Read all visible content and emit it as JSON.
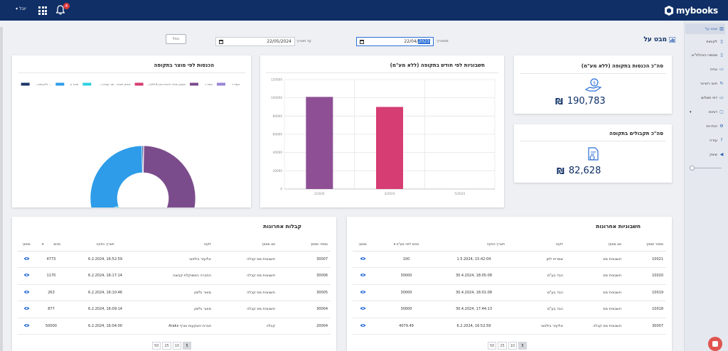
{
  "topbar": {
    "brand": "mybooks",
    "user_label": "יובל",
    "notifications_count": "4"
  },
  "sidebar": {
    "items": [
      {
        "label": "מבט על",
        "icon": "chart-icon"
      },
      {
        "label": "לקוחות",
        "icon": "document-icon"
      },
      {
        "label": "מסמכי הנהלח\"ש",
        "icon": "document-icon"
      },
      {
        "label": "גבייה",
        "icon": "money-icon"
      },
      {
        "label": "חיוב ריטיינר",
        "icon": "refresh-icon"
      },
      {
        "label": "דפי תשלום",
        "icon": "card-icon"
      },
      {
        "label": "דוחות",
        "icon": "report-icon"
      },
      {
        "label": "הגדרות",
        "icon": "gear-icon"
      },
      {
        "label": "עזרה",
        "icon": "help-icon"
      },
      {
        "label": "שיווק",
        "icon": "megaphone-icon"
      }
    ]
  },
  "header": {
    "title": "מבט על",
    "from_label": "מתאריך",
    "from_value_prefix": "22/04/",
    "from_value_selected": "2023",
    "to_label": "עד תאריך",
    "to_value": "22/05/2024",
    "filter_button": "החל"
  },
  "kpi_income": {
    "title": "סה\"כ הכנסות בתקופה (ללא מע\"מ)",
    "currency": "₪",
    "value": "190,783"
  },
  "kpi_receipts": {
    "title": "סה\"כ תקבולים בתקופה",
    "currency": "₪",
    "value": "82,628"
  },
  "bar_card": {
    "title": "חשבוניות לפי חודש בתקופה (ללא מע\"מ)"
  },
  "donut_card": {
    "title": "הכנסות לפי מוצר בתקופה"
  },
  "chart_data": [
    {
      "type": "bar",
      "title": "חשבוניות לפי חודש בתקופה (ללא מע\"מ)",
      "categories": [
        "2/2024",
        "4/2024",
        "5/2024"
      ],
      "values": [
        101000,
        90000,
        0
      ],
      "colors": [
        "#8e4f95",
        "#d63d72",
        "#cccccc"
      ],
      "ylim": [
        0,
        120000
      ],
      "yticks": [
        0,
        20000,
        40000,
        60000,
        80000,
        100000,
        120000
      ],
      "grid": true
    },
    {
      "type": "pie",
      "title": "הכנסות לפי מוצר בתקופה",
      "labels": [
        "מוצר ד",
        "מוצר ג",
        "...(2019) מענק חבלה לרבות מע",
        "...סינזק תוכנה - תור עבודה",
        "מוצר א",
        "...ללקוחות ..."
      ],
      "values": [
        0.3,
        55.5,
        0.2,
        14,
        29.7,
        0.3
      ],
      "colors": [
        "#9b86d6",
        "#7b4c8c",
        "#d63d72",
        "#2fd0e0",
        "#2e9ce8",
        "#1c3566"
      ],
      "legend": "top"
    }
  ],
  "invoices": {
    "title": "חשבוניות אחרונות",
    "columns": [
      "מספר מסמך",
      "סוג מסמך",
      "לקוח",
      "תאריך הפקה",
      "סכום לפני מע\"מ",
      "מסמך"
    ],
    "rows": [
      {
        "num": "10021",
        "type": "חשבונית מס",
        "client": "שמרית לתן",
        "date": "1.5.2024, 15:42:04",
        "amount": "100"
      },
      {
        "num": "10020",
        "type": "חשבונית מס",
        "client": "הבד בע\"מ",
        "date": "30.4.2024, 18:05:08",
        "amount": "30000"
      },
      {
        "num": "10019",
        "type": "חשבונית מס",
        "client": "הבד בע\"מ",
        "date": "30.4.2024, 18:01:08",
        "amount": "30000"
      },
      {
        "num": "10018",
        "type": "חשבונית מס",
        "client": "הבד בע\"מ",
        "date": "30.4.2024, 17:44:13",
        "amount": "30000"
      },
      {
        "num": "30007",
        "type": "חשבונית מס קבלה",
        "client": "אליעזר בילסוני",
        "date": "6.2.2024, 16:52:59",
        "amount": "4079.49"
      }
    ],
    "pages": [
      "5",
      "10",
      "25",
      "50"
    ],
    "active_page": "5"
  },
  "receipts": {
    "title": "קבלות אחרונות",
    "columns": [
      "מספר מסמך",
      "סוג מסמך",
      "לקוח",
      "תאריך הפקה",
      "סכום",
      "מסמך"
    ],
    "rows": [
      {
        "num": "30007",
        "type": "חשבונית מס קבלה",
        "client": "אליעזר בילסוני",
        "date": "6.2.2024, 16:52:59",
        "amount": "4773"
      },
      {
        "num": "30006",
        "type": "חשבונית מס קבלה",
        "client": "החברה המשוקלת קבוצה",
        "date": "6.2.2024, 16:17:14",
        "amount": "1170"
      },
      {
        "num": "30005",
        "type": "חשבונית מס קבלה",
        "client": "מאור גלזמן",
        "date": "6.2.2024, 16:10:46",
        "amount": "263"
      },
      {
        "num": "30004",
        "type": "חשבונית מס קבלה",
        "client": "מאור גלזמן",
        "date": "6.2.2024, 16:09:14",
        "amount": "877"
      },
      {
        "num": "20004",
        "type": "קבלה",
        "client": "Araks חברת השקעות טורף",
        "date": "6.2.2024, 16:04:00",
        "amount": "50000"
      }
    ],
    "pages": [
      "5",
      "10",
      "25",
      "50"
    ],
    "active_page": "5"
  }
}
